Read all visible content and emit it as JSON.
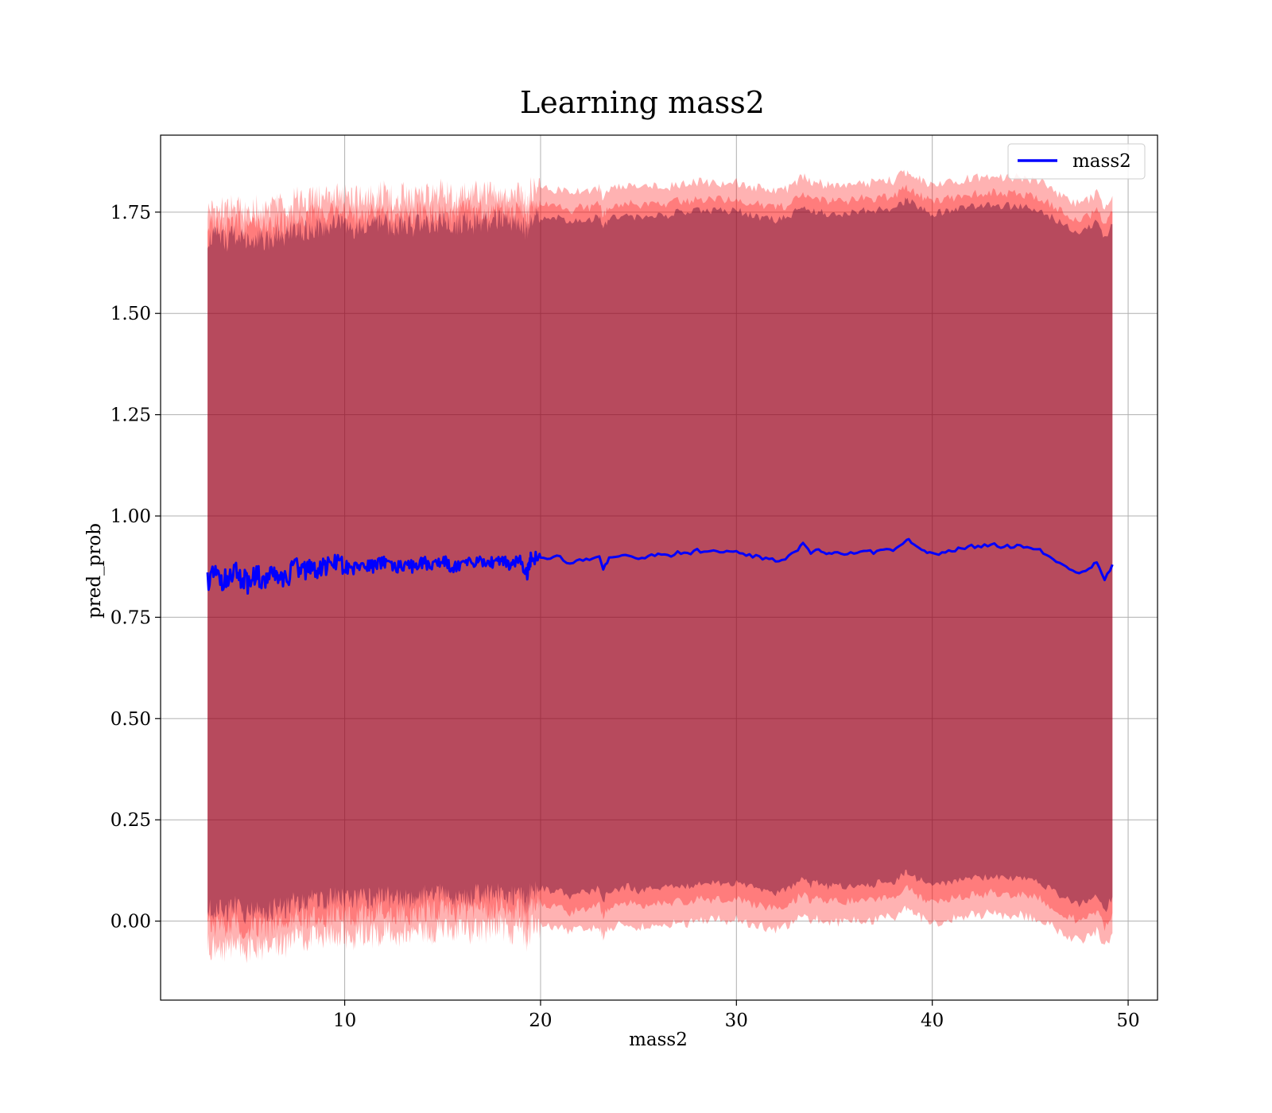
{
  "chart_data": {
    "type": "line",
    "title": "Learning mass2",
    "xlabel": "mass2",
    "ylabel": "pred_prob",
    "xlim": [
      0.6,
      51.5
    ],
    "ylim": [
      -0.195,
      1.94
    ],
    "xticks": [
      10,
      20,
      30,
      40,
      50
    ],
    "yticks": [
      0.0,
      0.25,
      0.5,
      0.75,
      1.0,
      1.25,
      1.5,
      1.75
    ],
    "xtick_labels": [
      "10",
      "20",
      "30",
      "40",
      "50"
    ],
    "ytick_labels": [
      "0.00",
      "0.25",
      "0.50",
      "0.75",
      "1.00",
      "1.25",
      "1.50",
      "1.75"
    ],
    "grid": true,
    "legend": {
      "position": "top-right",
      "entries": [
        "mass2"
      ]
    },
    "colors": {
      "line": "#0000ff",
      "band_outer": "#ff0000",
      "band_inner": "#4b0030"
    },
    "series": [
      {
        "name": "mass2",
        "x": [
          3.0,
          3.5,
          4.0,
          4.5,
          5.0,
          5.5,
          6.0,
          6.5,
          7.0,
          7.5,
          8.0,
          8.5,
          9.0,
          9.5,
          10.0,
          10.5,
          11.0,
          11.5,
          12.0,
          12.5,
          13.0,
          13.5,
          14.0,
          14.5,
          15.0,
          15.5,
          16.0,
          16.5,
          17.0,
          17.5,
          18.0,
          18.5,
          19.0,
          19.3,
          19.5,
          20.0,
          20.5,
          21.0,
          21.5,
          22.0,
          22.5,
          23.0,
          23.2,
          23.5,
          24.0,
          24.5,
          25.0,
          25.5,
          26.0,
          26.5,
          27.0,
          27.5,
          28.0,
          28.5,
          29.0,
          29.5,
          30.0,
          30.5,
          31.0,
          31.5,
          32.0,
          32.5,
          33.0,
          33.4,
          33.8,
          34.2,
          34.6,
          35.0,
          35.5,
          36.0,
          36.5,
          37.0,
          37.5,
          38.0,
          38.5,
          38.8,
          39.2,
          39.6,
          40.0,
          40.5,
          41.0,
          41.5,
          42.0,
          42.5,
          43.0,
          43.5,
          44.0,
          44.5,
          45.0,
          45.5,
          46.0,
          46.5,
          47.0,
          47.5,
          48.0,
          48.4,
          48.8,
          49.2
        ],
        "values": [
          0.845,
          0.85,
          0.84,
          0.86,
          0.835,
          0.85,
          0.84,
          0.855,
          0.85,
          0.87,
          0.865,
          0.875,
          0.87,
          0.88,
          0.875,
          0.87,
          0.88,
          0.875,
          0.885,
          0.87,
          0.88,
          0.875,
          0.885,
          0.88,
          0.89,
          0.875,
          0.885,
          0.88,
          0.89,
          0.885,
          0.895,
          0.88,
          0.89,
          0.855,
          0.895,
          0.9,
          0.895,
          0.9,
          0.88,
          0.895,
          0.89,
          0.9,
          0.87,
          0.895,
          0.9,
          0.905,
          0.895,
          0.9,
          0.905,
          0.9,
          0.91,
          0.905,
          0.915,
          0.91,
          0.915,
          0.91,
          0.915,
          0.905,
          0.9,
          0.895,
          0.89,
          0.895,
          0.91,
          0.93,
          0.91,
          0.915,
          0.905,
          0.91,
          0.905,
          0.91,
          0.915,
          0.91,
          0.92,
          0.915,
          0.935,
          0.94,
          0.925,
          0.915,
          0.905,
          0.91,
          0.915,
          0.92,
          0.925,
          0.925,
          0.93,
          0.925,
          0.925,
          0.925,
          0.92,
          0.915,
          0.9,
          0.885,
          0.87,
          0.86,
          0.87,
          0.885,
          0.845,
          0.88
        ]
      }
    ]
  }
}
